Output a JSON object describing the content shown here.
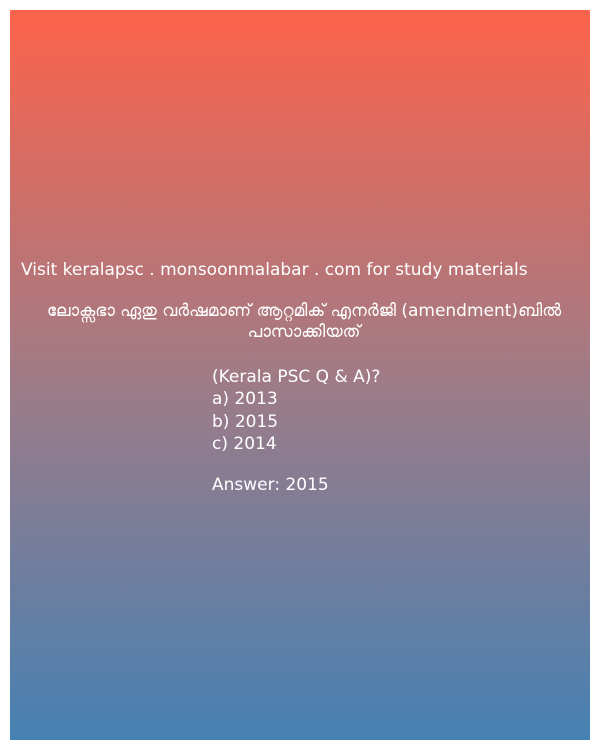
{
  "visit_text": "Visit keralapsc . monsoonmalabar . com for study materials",
  "question": "ലോക്സഭാ ഏതു വർഷമാണ് ആറ്റമിക് എനർജി (amendment)ബിൽ പാസാക്കിയത്",
  "source": "(Kerala PSC Q & A)?",
  "options": [
    "a) 2013",
    "b) 2015",
    "c) 2014"
  ],
  "answer": "Answer: 2015",
  "colors": {
    "gradient_top": "#fd634b",
    "gradient_bottom": "#4681b3",
    "text": "#ffffff"
  }
}
